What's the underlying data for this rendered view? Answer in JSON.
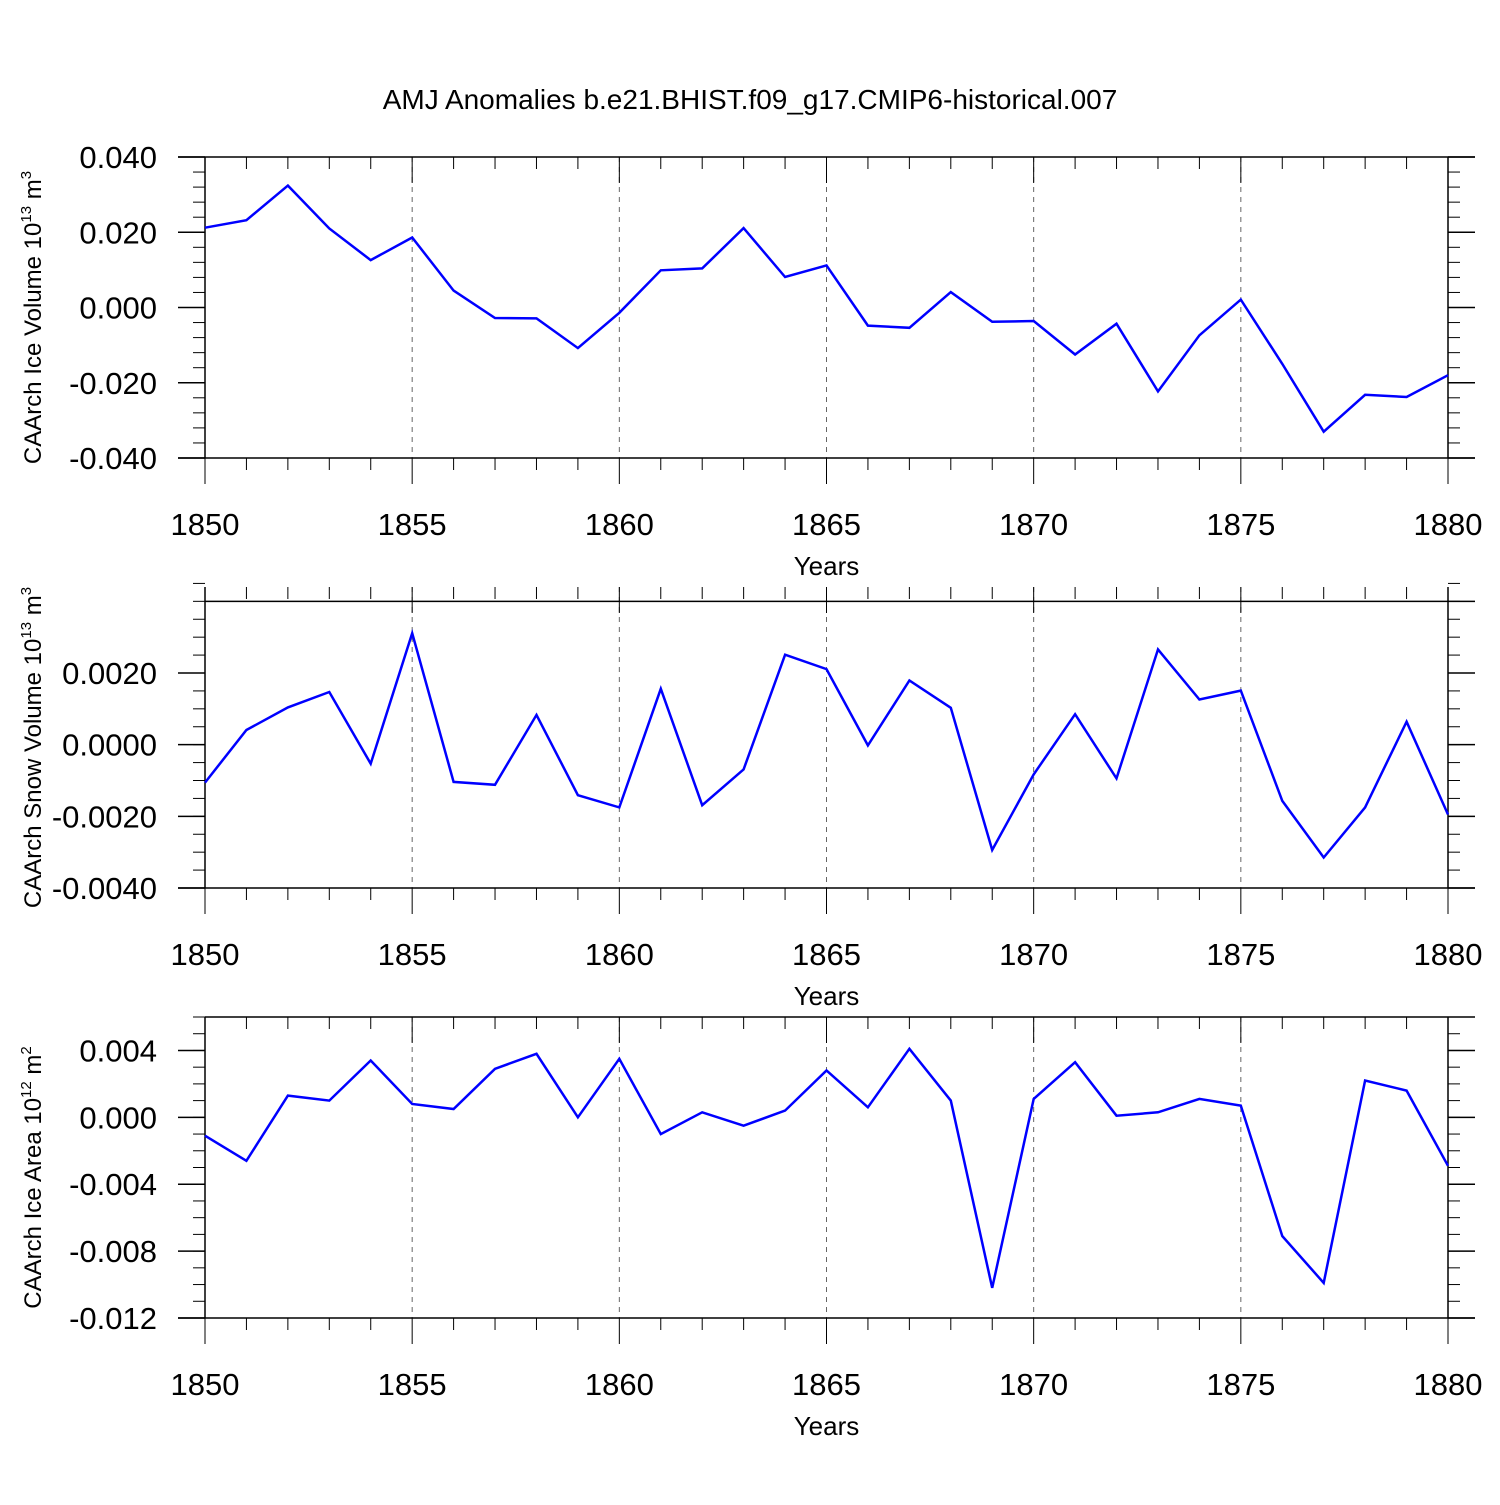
{
  "title": "AMJ Anomalies b.e21.BHIST.f09_g17.CMIP6-historical.007",
  "chart_data": [
    {
      "type": "line",
      "ylabel": "CAArch Ice Volume 10",
      "ylabel_exp": "13",
      "ylabel_unit": "m",
      "ylabel_unit_exp": "3",
      "xlabel": "Years",
      "xlim": [
        1850,
        1880
      ],
      "ylim": [
        -0.04,
        0.04
      ],
      "top_line": 0.04,
      "yticks": [
        -0.04,
        -0.02,
        0.0,
        0.02,
        0.04
      ],
      "yticklabels": [
        "-0.040",
        "-0.020",
        "0.000",
        "0.020",
        "0.040"
      ],
      "yminor_step": 0.004,
      "xticks": [
        1850,
        1855,
        1860,
        1865,
        1870,
        1875,
        1880
      ],
      "xticklabels": [
        "1850",
        "1855",
        "1860",
        "1865",
        "1870",
        "1875",
        "1880"
      ],
      "grid_x": true,
      "color": "#0000ff",
      "x": [
        1850,
        1851,
        1852,
        1853,
        1854,
        1855,
        1856,
        1857,
        1858,
        1859,
        1860,
        1861,
        1862,
        1863,
        1864,
        1865,
        1866,
        1867,
        1868,
        1869,
        1870,
        1871,
        1872,
        1873,
        1874,
        1875,
        1876,
        1877,
        1878,
        1879,
        1880
      ],
      "y": [
        0.0212,
        0.0232,
        0.0324,
        0.021,
        0.0126,
        0.0186,
        0.0045,
        -0.0028,
        -0.0029,
        -0.0108,
        -0.0014,
        0.0099,
        0.0104,
        0.0211,
        0.0081,
        0.0112,
        -0.0048,
        -0.0054,
        0.0041,
        -0.0038,
        -0.0036,
        -0.0125,
        -0.0043,
        -0.0223,
        -0.0074,
        0.0021,
        -0.015,
        -0.033,
        -0.0232,
        -0.0238,
        -0.018
      ]
    },
    {
      "type": "line",
      "ylabel": "CAArch Snow Volume 10",
      "ylabel_exp": "13",
      "ylabel_unit": "m",
      "ylabel_unit_exp": "3",
      "xlabel": "Years",
      "xlim": [
        1850,
        1880
      ],
      "ylim": [
        -0.004,
        0.0044
      ],
      "top_line": 0.004,
      "yticks": [
        -0.004,
        -0.002,
        0.0,
        0.002
      ],
      "yticklabels": [
        "-0.0040",
        "-0.0020",
        "0.0000",
        "0.0020"
      ],
      "yminor_step": 0.0005,
      "xticks": [
        1850,
        1855,
        1860,
        1865,
        1870,
        1875,
        1880
      ],
      "xticklabels": [
        "1850",
        "1855",
        "1860",
        "1865",
        "1870",
        "1875",
        "1880"
      ],
      "grid_x": true,
      "color": "#0000ff",
      "x": [
        1850,
        1851,
        1852,
        1853,
        1854,
        1855,
        1856,
        1857,
        1858,
        1859,
        1860,
        1861,
        1862,
        1863,
        1864,
        1865,
        1866,
        1867,
        1868,
        1869,
        1870,
        1871,
        1872,
        1873,
        1874,
        1875,
        1876,
        1877,
        1878,
        1879,
        1880
      ],
      "y": [
        -0.00106,
        0.00041,
        0.00104,
        0.00147,
        -0.00053,
        0.00311,
        -0.00104,
        -0.00112,
        0.00083,
        -0.00141,
        -0.00175,
        0.00156,
        -0.00169,
        -0.00069,
        0.00251,
        0.00211,
        -2e-05,
        0.00179,
        0.00103,
        -0.00294,
        -0.00083,
        0.00085,
        -0.00094,
        0.00266,
        0.00126,
        0.00151,
        -0.00157,
        -0.00315,
        -0.00175,
        0.00064,
        -0.00195
      ]
    },
    {
      "type": "line",
      "ylabel": "CAArch Ice Area 10",
      "ylabel_exp": "12",
      "ylabel_unit": "m",
      "ylabel_unit_exp": "2",
      "xlabel": "Years",
      "xlim": [
        1850,
        1880
      ],
      "ylim": [
        -0.012,
        0.006
      ],
      "top_line": 0.006,
      "yticks": [
        -0.012,
        -0.008,
        -0.004,
        0.0,
        0.004
      ],
      "yticklabels": [
        "-0.012",
        "-0.008",
        "-0.004",
        "0.000",
        "0.004"
      ],
      "yminor_step": 0.001,
      "xticks": [
        1850,
        1855,
        1860,
        1865,
        1870,
        1875,
        1880
      ],
      "xticklabels": [
        "1850",
        "1855",
        "1860",
        "1865",
        "1870",
        "1875",
        "1880"
      ],
      "grid_x": true,
      "color": "#0000ff",
      "x": [
        1850,
        1851,
        1852,
        1853,
        1854,
        1855,
        1856,
        1857,
        1858,
        1859,
        1860,
        1861,
        1862,
        1863,
        1864,
        1865,
        1866,
        1867,
        1868,
        1869,
        1870,
        1871,
        1872,
        1873,
        1874,
        1875,
        1876,
        1877,
        1878,
        1879,
        1880
      ],
      "y": [
        -0.0011,
        -0.0026,
        0.0013,
        0.001,
        0.0034,
        0.0008,
        0.0005,
        0.0029,
        0.0038,
        0.0,
        0.0035,
        -0.001,
        0.0003,
        -0.0005,
        0.0004,
        0.0028,
        0.0006,
        0.0041,
        0.001,
        -0.0102,
        0.0011,
        0.0033,
        0.0001,
        0.0003,
        0.0011,
        0.0007,
        -0.0071,
        -0.0099,
        0.0022,
        0.0016,
        -0.0029
      ]
    }
  ]
}
